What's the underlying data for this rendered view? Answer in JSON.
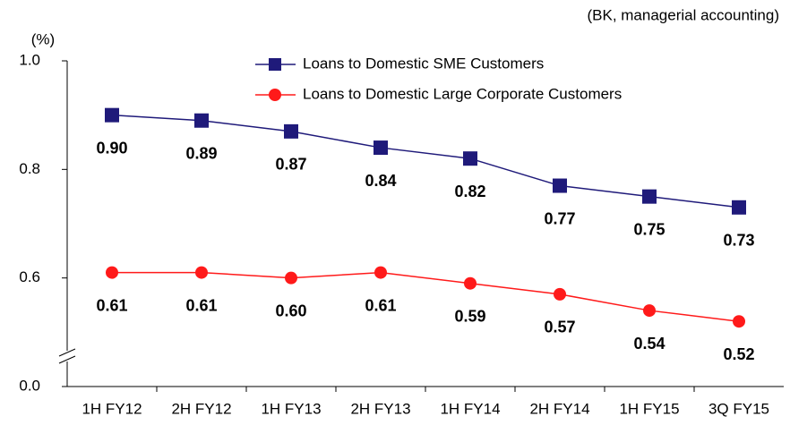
{
  "chart_data": {
    "type": "line",
    "note": "(BK, managerial accounting)",
    "y_unit": "(%)",
    "categories": [
      "1H FY12",
      "2H FY12",
      "1H FY13",
      "2H FY13",
      "1H FY14",
      "2H FY14",
      "1H FY15",
      "3Q FY15"
    ],
    "series": [
      {
        "name": "Loans to Domestic SME Customers",
        "color": "#1f1a7a",
        "marker": "square",
        "values": [
          0.9,
          0.89,
          0.87,
          0.84,
          0.82,
          0.77,
          0.75,
          0.73
        ],
        "value_labels": [
          "0.90",
          "0.89",
          "0.87",
          "0.84",
          "0.82",
          "0.77",
          "0.75",
          "0.73"
        ]
      },
      {
        "name": "Loans to Domestic Large Corporate Customers",
        "color": "#ff1a1a",
        "marker": "circle",
        "values": [
          0.61,
          0.61,
          0.6,
          0.61,
          0.59,
          0.57,
          0.54,
          0.52
        ],
        "value_labels": [
          "0.61",
          "0.61",
          "0.60",
          "0.61",
          "0.59",
          "0.57",
          "0.54",
          "0.52"
        ]
      }
    ],
    "ylim": [
      0,
      1.0
    ],
    "y_break": 0.4,
    "yticks": [
      {
        "value": 0,
        "label": "0.0"
      },
      0.6,
      0.8,
      {
        "value": 1.0,
        "label": "1.0"
      }
    ],
    "grid": false
  }
}
